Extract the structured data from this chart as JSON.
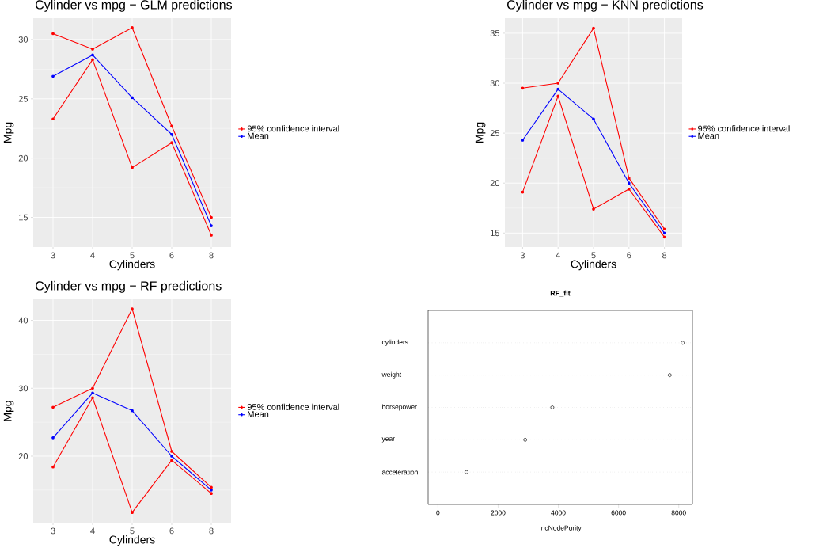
{
  "chart_data": [
    {
      "type": "line",
      "title": "Cylinder vs mpg − GLM predictions",
      "xlabel": "Cylinders",
      "ylabel": "Mpg",
      "categories": [
        "3",
        "4",
        "5",
        "6",
        "8"
      ],
      "ylim": [
        12.5,
        31.8
      ],
      "yticks": [
        15,
        {
          "value": 17.5,
          "label": null
        },
        20,
        {
          "value": 22.5,
          "label": null
        },
        25,
        {
          "value": 27.5,
          "label": null
        },
        30
      ],
      "grid": true,
      "legend": "right",
      "marker": "circle",
      "line_style": "solid",
      "series": [
        {
          "name": "95% confidence interval",
          "color": "#ff0000",
          "values": [
            30.5,
            29.2,
            31.0,
            22.7,
            15.0
          ]
        },
        {
          "color": "#ff0000",
          "values": [
            23.3,
            28.3,
            19.2,
            21.3,
            13.5
          ]
        },
        {
          "name": "Mean",
          "color": "#0000ff",
          "values": [
            26.9,
            28.7,
            25.1,
            22.0,
            14.3
          ]
        }
      ]
    },
    {
      "type": "line",
      "title": "Cylinder vs mpg − KNN predictions",
      "xlabel": "Cylinders",
      "ylabel": "Mpg",
      "categories": [
        "3",
        "4",
        "5",
        "6",
        "8"
      ],
      "ylim": [
        13.6,
        36.5
      ],
      "yticks": [
        15,
        {
          "value": 17.5,
          "label": null
        },
        20,
        {
          "value": 22.5,
          "label": null
        },
        25,
        {
          "value": 27.5,
          "label": null
        },
        30,
        {
          "value": 32.5,
          "label": null
        },
        35
      ],
      "grid": true,
      "legend": "right",
      "marker": "circle",
      "line_style": "solid",
      "series": [
        {
          "name": "95% confidence interval",
          "color": "#ff0000",
          "values": [
            29.5,
            30.0,
            35.5,
            20.5,
            15.4
          ]
        },
        {
          "color": "#ff0000",
          "values": [
            19.1,
            28.7,
            17.4,
            19.4,
            14.6
          ]
        },
        {
          "name": "Mean",
          "color": "#0000ff",
          "values": [
            24.3,
            29.4,
            26.4,
            20.0,
            15.0
          ]
        }
      ]
    },
    {
      "type": "line",
      "title": "Cylinder vs mpg − RF predictions",
      "xlabel": "Cylinders",
      "ylabel": "Mpg",
      "categories": [
        "3",
        "4",
        "5",
        "6",
        "8"
      ],
      "ylim": [
        10.2,
        43.1
      ],
      "yticks": [
        {
          "value": 15,
          "label": null
        },
        20,
        {
          "value": 25,
          "label": null
        },
        30,
        {
          "value": 35,
          "label": null
        },
        40
      ],
      "grid": true,
      "legend": "right",
      "marker": "circle",
      "line_style": "solid",
      "series": [
        {
          "name": "95% confidence interval",
          "color": "#ff0000",
          "values": [
            27.2,
            30.0,
            41.7,
            20.7,
            15.4
          ]
        },
        {
          "color": "#ff0000",
          "values": [
            18.4,
            28.6,
            11.7,
            19.4,
            14.5
          ]
        },
        {
          "name": "Mean",
          "color": "#0000ff",
          "values": [
            22.7,
            29.3,
            26.7,
            20.0,
            15.0
          ]
        }
      ]
    },
    {
      "type": "scatter",
      "orientation": "horizontal",
      "title": "RF_fit",
      "xlabel": "IncNodePurity",
      "categories": [
        "cylinders",
        "weight",
        "horsepower",
        "year",
        "acceleration"
      ],
      "values": [
        8130,
        7700,
        3800,
        2900,
        950
      ],
      "color": "#000000",
      "xlim": [
        -325,
        8455
      ],
      "xticks": [
        0,
        2000,
        4000,
        6000,
        8000
      ],
      "grid": "y",
      "marker": "circle"
    }
  ]
}
